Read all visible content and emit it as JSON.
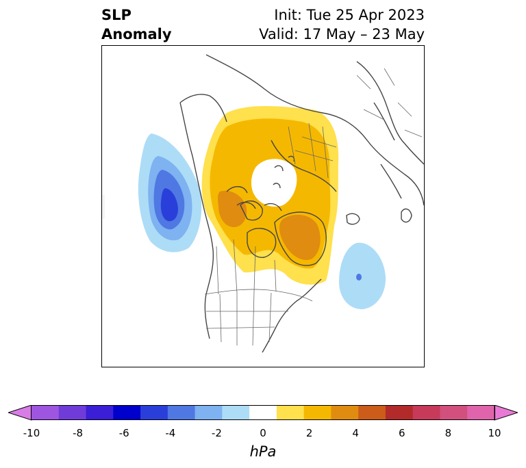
{
  "header": {
    "title_line1": "SLP",
    "title_line2": "Anomaly",
    "init": "Init: Tue 25 Apr 2023",
    "valid": "Valid: 17 May – 23 May"
  },
  "map": {
    "projection": "north-polar-stereographic",
    "anomalies": [
      {
        "name": "negative-anomaly-west-coast",
        "sign": "negative",
        "min_hPa": -6,
        "region": "NE Pacific off British Columbia"
      },
      {
        "name": "negative-anomaly-north-atlantic",
        "sign": "negative",
        "min_hPa": -4,
        "region": "North Atlantic"
      },
      {
        "name": "positive-anomaly-arctic",
        "sign": "positive",
        "max_hPa": 4,
        "region": "Arctic / Canada / Greenland"
      }
    ]
  },
  "colorbar": {
    "levels": [
      -10,
      -9,
      -8,
      -7,
      -6,
      -5,
      -4,
      -3,
      -2,
      -1,
      1,
      2,
      3,
      4,
      5,
      6,
      7,
      8,
      9,
      10
    ],
    "colors": [
      "#d97de6",
      "#9e56e0",
      "#6f3cd9",
      "#3a1fd6",
      "#0000cc",
      "#2a3fd9",
      "#4f78e3",
      "#7eb2f0",
      "#addcf7",
      "#ffffff",
      "#ffe04d",
      "#f5b800",
      "#e08c10",
      "#cc5c1a",
      "#b22a2a",
      "#c73a5a",
      "#d1507e",
      "#df64ab",
      "#e87ad6"
    ],
    "tick_labels": [
      "-10",
      "-8",
      "-6",
      "-4",
      "-2",
      "0",
      "2",
      "4",
      "6",
      "8",
      "10"
    ],
    "unit": "hPa"
  }
}
